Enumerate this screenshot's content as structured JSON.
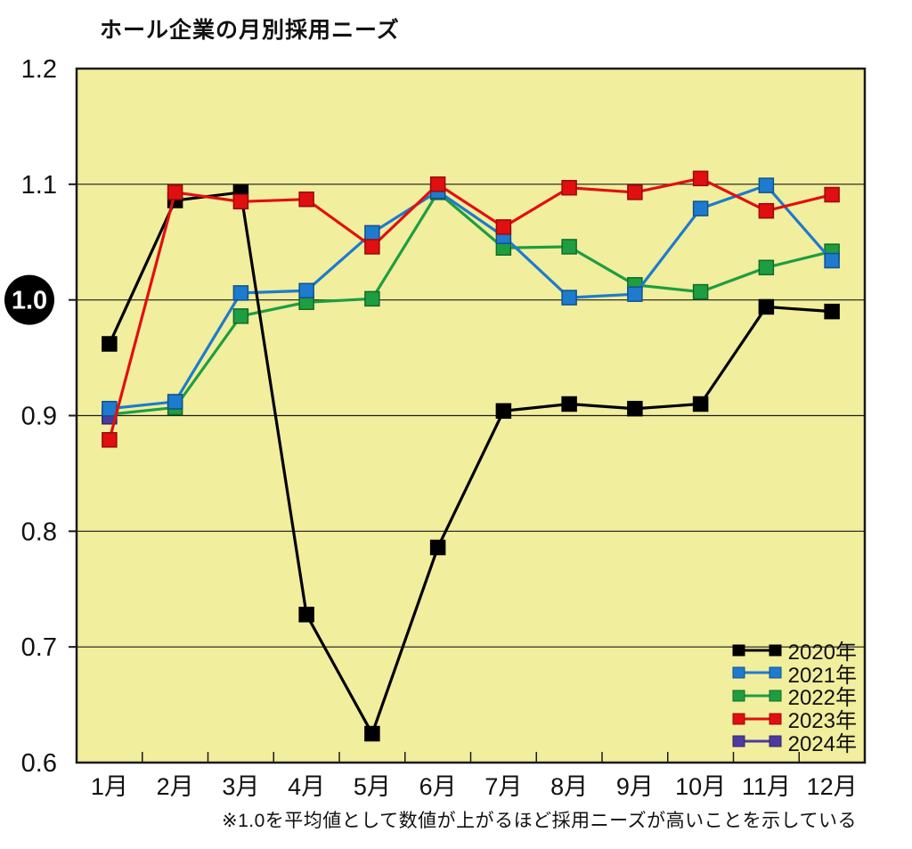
{
  "chart_data": {
    "type": "line",
    "title": "ホール企業の月別採用ニーズ",
    "note": "※1.0を平均値として数値が上がるほど採用ニーズが高いことを示している",
    "categories": [
      "1月",
      "2月",
      "3月",
      "4月",
      "5月",
      "6月",
      "7月",
      "8月",
      "9月",
      "10月",
      "11月",
      "12月"
    ],
    "ylim": [
      0.6,
      1.2
    ],
    "ytick_step": 0.1,
    "ytick_labels": [
      "0.6",
      "0.7",
      "0.8",
      "0.9",
      "1.0",
      "1.1",
      "1.2"
    ],
    "highlighted_ytick": "1.0",
    "grid": true,
    "plot_background": "#f1ee9e",
    "legend_position": "bottom-right-inside",
    "series": [
      {
        "name": "2020年",
        "color": "#000000",
        "values": [
          0.962,
          1.086,
          1.093,
          0.728,
          0.625,
          0.786,
          0.904,
          0.91,
          0.906,
          0.91,
          0.994,
          0.99
        ]
      },
      {
        "name": "2021年",
        "color": "#1e7bcd",
        "values": [
          0.906,
          0.912,
          1.006,
          1.008,
          1.058,
          1.094,
          1.055,
          1.002,
          1.005,
          1.079,
          1.099,
          1.034
        ]
      },
      {
        "name": "2022年",
        "color": "#1e9e40",
        "values": [
          0.901,
          0.907,
          0.986,
          0.998,
          1.001,
          1.093,
          1.045,
          1.046,
          1.013,
          1.007,
          1.028,
          1.042
        ]
      },
      {
        "name": "2023年",
        "color": "#e01010",
        "values": [
          0.879,
          1.093,
          1.085,
          1.087,
          1.046,
          1.1,
          1.063,
          1.097,
          1.093,
          1.105,
          1.077,
          1.091
        ]
      },
      {
        "name": "2024年",
        "color": "#4d3aa0",
        "values": [
          0.899,
          null,
          null,
          null,
          null,
          null,
          null,
          null,
          null,
          null,
          null,
          null
        ]
      }
    ]
  }
}
